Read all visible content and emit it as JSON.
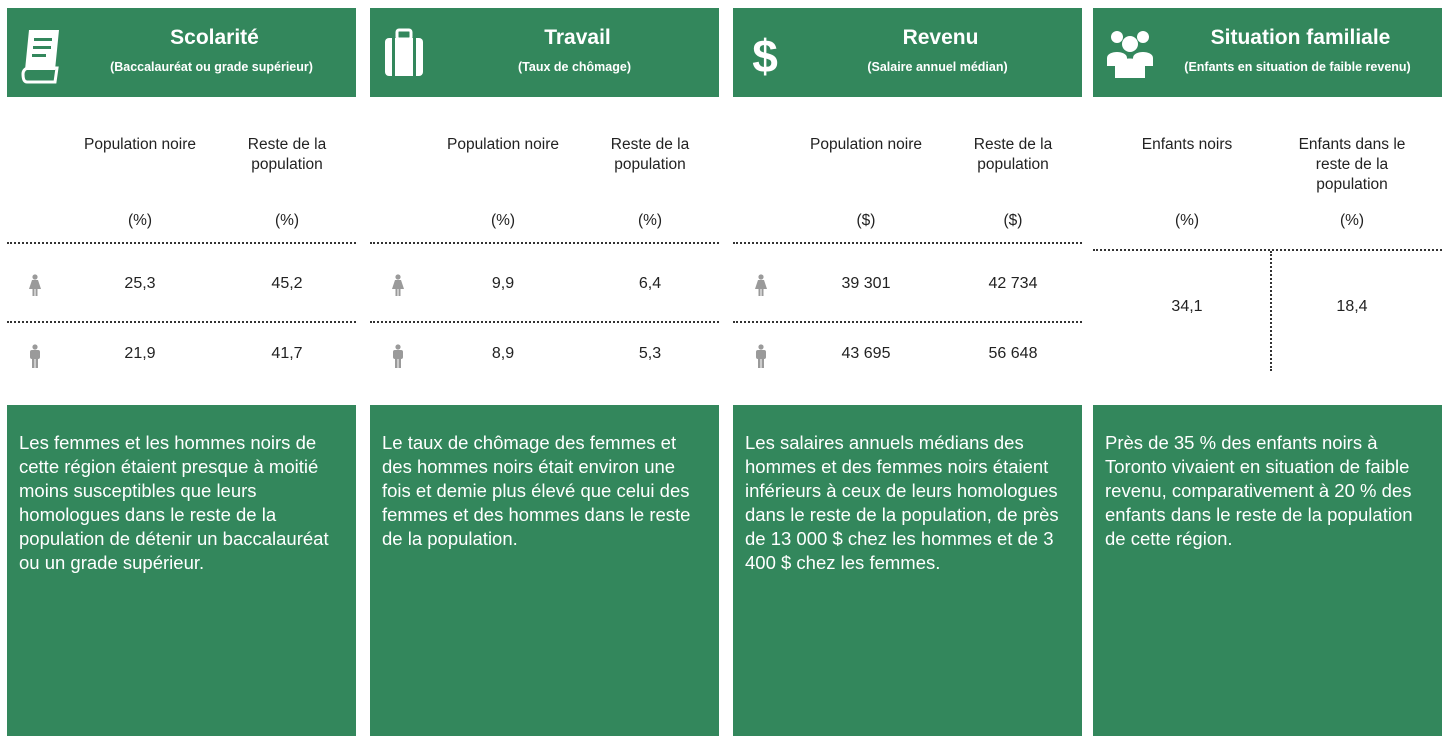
{
  "panels": [
    {
      "title": "Scolarité",
      "subtitle": "(Baccalauréat ou grade supérieur)",
      "columns": [
        "Population noire",
        "Reste de la population"
      ],
      "units": [
        "(%)",
        "(%)"
      ],
      "rows": [
        [
          "25,3",
          "45,2"
        ],
        [
          "21,9",
          "41,7"
        ]
      ],
      "description": "Les femmes et les hommes noirs de cette région étaient presque à moitié moins susceptibles que leurs homologues dans le reste de la population de détenir un baccalauréat ou un grade supérieur."
    },
    {
      "title": "Travail",
      "subtitle": "(Taux de chômage)",
      "columns": [
        "Population noire",
        "Reste de la population"
      ],
      "units": [
        "(%)",
        "(%)"
      ],
      "rows": [
        [
          "9,9",
          "6,4"
        ],
        [
          "8,9",
          "5,3"
        ]
      ],
      "description": "Le taux de chômage des femmes et des hommes noirs était environ une fois et demie plus élevé que celui des femmes et des hommes dans le reste de la population."
    },
    {
      "title": "Revenu",
      "subtitle": "(Salaire annuel médian)",
      "columns": [
        "Population noire",
        "Reste de la population"
      ],
      "units": [
        "($)",
        "($)"
      ],
      "rows": [
        [
          "39 301",
          "42 734"
        ],
        [
          "43 695",
          "56 648"
        ]
      ],
      "description": "Les salaires annuels médians des hommes et des femmes noirs étaient inférieurs à ceux de leurs homologues dans le reste de la population, de près de 13 000 $ chez les hommes et de 3 400 $ chez les femmes."
    },
    {
      "title": "Situation familiale",
      "subtitle": "(Enfants en situation de faible revenu)",
      "columns": [
        "Enfants  noirs",
        "Enfants dans le reste de la population"
      ],
      "units": [
        "(%)",
        "(%)"
      ],
      "rows": [
        [
          "34,1",
          "18,4"
        ]
      ],
      "description": "Près de 35 % des enfants noirs à Toronto vivaient en situation de faible revenu, comparativement à 20 % des enfants dans le reste de la population de cette région."
    }
  ]
}
